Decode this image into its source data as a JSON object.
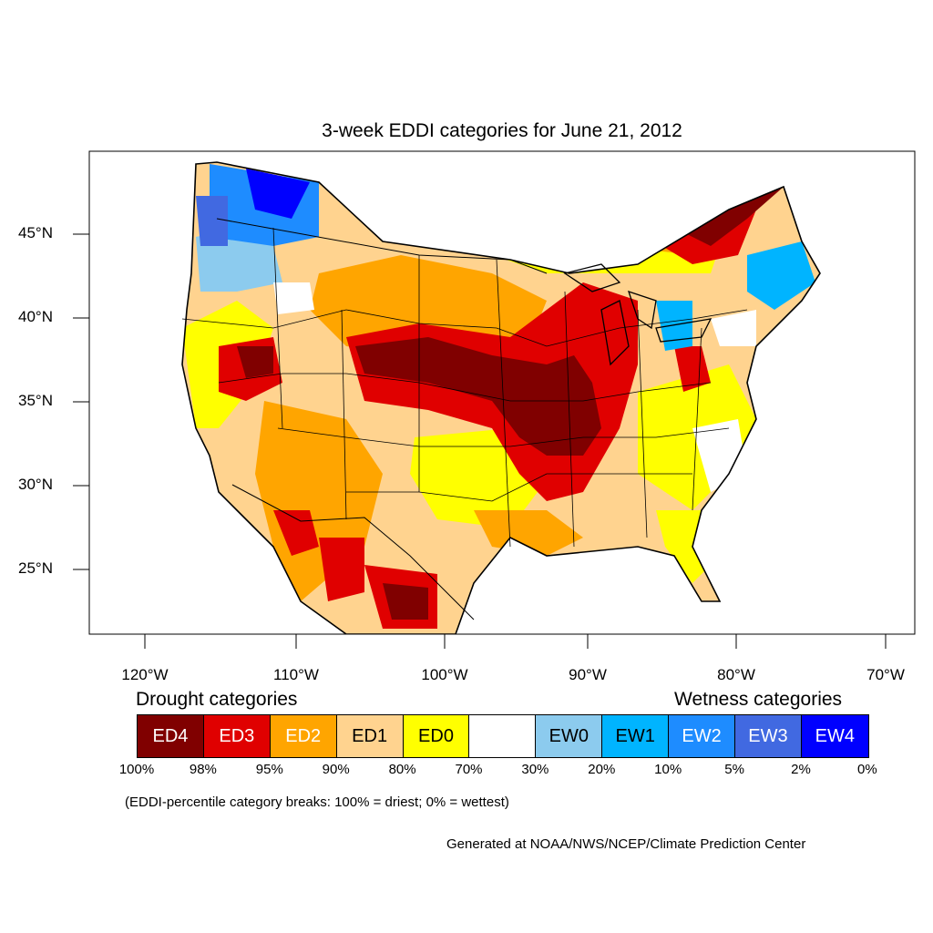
{
  "title": "3-week EDDI categories for June 21, 2012",
  "axes": {
    "lat_labels": [
      "45°N",
      "40°N",
      "35°N",
      "30°N",
      "25°N"
    ],
    "lon_labels": [
      "120°W",
      "110°W",
      "100°W",
      "90°W",
      "80°W",
      "70°W"
    ]
  },
  "legend": {
    "drought_heading": "Drought categories",
    "wetness_heading": "Wetness categories",
    "categories": [
      {
        "label": "ED4",
        "color": "#800000",
        "text_color": "#ffffff"
      },
      {
        "label": "ED3",
        "color": "#e00000",
        "text_color": "#ffffff"
      },
      {
        "label": "ED2",
        "color": "#ffa500",
        "text_color": "#ffffff"
      },
      {
        "label": "ED1",
        "color": "#ffd38f",
        "text_color": "#000000"
      },
      {
        "label": "ED0",
        "color": "#ffff00",
        "text_color": "#000000"
      },
      {
        "label": "",
        "color": "#ffffff",
        "text_color": "#000000"
      },
      {
        "label": "EW0",
        "color": "#8ccbee",
        "text_color": "#000000"
      },
      {
        "label": "EW1",
        "color": "#00b4ff",
        "text_color": "#000000"
      },
      {
        "label": "EW2",
        "color": "#1e8cff",
        "text_color": "#ffffff"
      },
      {
        "label": "EW3",
        "color": "#4169e1",
        "text_color": "#ffffff"
      },
      {
        "label": "EW4",
        "color": "#0000ff",
        "text_color": "#ffffff"
      }
    ],
    "breaks": [
      "100%",
      "98%",
      "95%",
      "90%",
      "80%",
      "70%",
      "30%",
      "20%",
      "10%",
      "5%",
      "2%",
      "0%"
    ],
    "note": "(EDDI-percentile category breaks: 100% = driest; 0% = wettest)"
  },
  "credit": "Generated at NOAA/NWS/NCEP/Climate Prediction Center"
}
